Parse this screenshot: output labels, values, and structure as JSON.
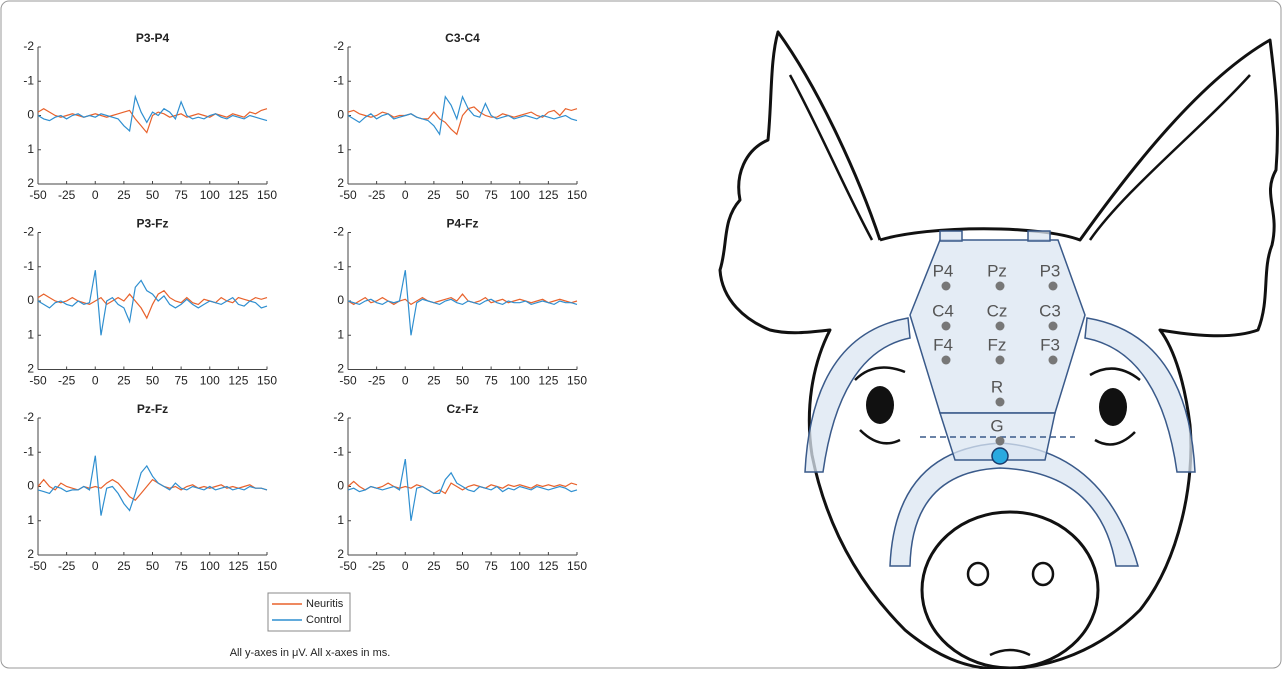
{
  "chart_data": [
    {
      "type": "line",
      "title": "P3-P4",
      "x": [
        -50,
        -45,
        -40,
        -35,
        -30,
        -25,
        -20,
        -15,
        -10,
        -5,
        0,
        5,
        10,
        15,
        20,
        25,
        30,
        35,
        40,
        45,
        50,
        55,
        60,
        65,
        70,
        75,
        80,
        85,
        90,
        95,
        100,
        105,
        110,
        115,
        120,
        125,
        130,
        135,
        140,
        145,
        150
      ],
      "series": [
        {
          "name": "Neuritis",
          "color": "#e8622c",
          "values": [
            -0.1,
            -0.2,
            -0.1,
            0,
            0.05,
            0,
            -0.05,
            0,
            0.05,
            0,
            -0.05,
            0,
            0.05,
            0,
            -0.05,
            -0.1,
            -0.15,
            0.1,
            0.3,
            0.5,
            0,
            -0.1,
            -0.05,
            0.05,
            0,
            -0.05,
            0.05,
            0,
            -0.05,
            0,
            0.05,
            -0.05,
            0,
            0.05,
            -0.05,
            0,
            0.05,
            -0.1,
            -0.05,
            -0.15,
            -0.2
          ]
        },
        {
          "name": "Control",
          "color": "#2f8fd0",
          "values": [
            0,
            0.1,
            0.15,
            0.05,
            0,
            0.1,
            0,
            -0.05,
            0.05,
            0,
            0.05,
            -0.05,
            0,
            0.05,
            0.1,
            0.3,
            0.45,
            -0.55,
            -0.1,
            0.2,
            -0.1,
            0,
            -0.2,
            -0.1,
            0.1,
            -0.4,
            0,
            0.1,
            0.05,
            0.1,
            0,
            -0.05,
            0.05,
            0.1,
            0,
            0.05,
            0.1,
            0,
            0.05,
            0.1,
            0.15
          ]
        }
      ],
      "xlim": [
        -50,
        150
      ],
      "ylim": [
        -2,
        2
      ],
      "y_inverted": true,
      "xticks": [
        -50,
        -25,
        0,
        25,
        50,
        75,
        100,
        125,
        150
      ],
      "yticks": [
        -2,
        -1,
        0,
        1,
        2
      ]
    },
    {
      "type": "line",
      "title": "C3-C4",
      "x": [
        -50,
        -45,
        -40,
        -35,
        -30,
        -25,
        -20,
        -15,
        -10,
        -5,
        0,
        5,
        10,
        15,
        20,
        25,
        30,
        35,
        40,
        45,
        50,
        55,
        60,
        65,
        70,
        75,
        80,
        85,
        90,
        95,
        100,
        105,
        110,
        115,
        120,
        125,
        130,
        135,
        140,
        145,
        150
      ],
      "series": [
        {
          "name": "Neuritis",
          "color": "#e8622c",
          "values": [
            -0.1,
            -0.15,
            -0.05,
            0,
            0.05,
            0,
            -0.1,
            -0.05,
            0.05,
            0,
            0,
            -0.05,
            0.05,
            0.1,
            0.1,
            -0.1,
            0.1,
            0.2,
            0.4,
            0.55,
            0,
            -0.2,
            -0.25,
            -0.1,
            0,
            0.05,
            0.05,
            -0.05,
            0,
            0.05,
            0,
            -0.05,
            -0.1,
            0,
            0.05,
            -0.1,
            -0.15,
            0,
            -0.2,
            -0.15,
            -0.2
          ]
        },
        {
          "name": "Control",
          "color": "#2f8fd0",
          "values": [
            0,
            0.1,
            0.2,
            0.05,
            -0.05,
            0.1,
            0,
            -0.05,
            0.1,
            0.05,
            0,
            -0.05,
            0.05,
            0.1,
            0.15,
            0.3,
            0.55,
            -0.55,
            -0.3,
            0.1,
            -0.55,
            -0.2,
            0,
            0.05,
            -0.35,
            0,
            0.1,
            0.05,
            0,
            0.1,
            0.05,
            0,
            0.05,
            0.1,
            0,
            0.05,
            0.1,
            0.05,
            0,
            0.1,
            0.15
          ]
        }
      ],
      "xlim": [
        -50,
        150
      ],
      "ylim": [
        -2,
        2
      ],
      "y_inverted": true,
      "xticks": [
        -50,
        -25,
        0,
        25,
        50,
        75,
        100,
        125,
        150
      ],
      "yticks": [
        -2,
        -1,
        0,
        1,
        2
      ]
    },
    {
      "type": "line",
      "title": "P3-Fz",
      "x": [
        -50,
        -45,
        -40,
        -35,
        -30,
        -25,
        -20,
        -15,
        -10,
        -5,
        0,
        5,
        10,
        15,
        20,
        25,
        30,
        35,
        40,
        45,
        50,
        55,
        60,
        65,
        70,
        75,
        80,
        85,
        90,
        95,
        100,
        105,
        110,
        115,
        120,
        125,
        130,
        135,
        140,
        145,
        150
      ],
      "series": [
        {
          "name": "Neuritis",
          "color": "#e8622c",
          "values": [
            -0.1,
            -0.2,
            -0.1,
            0,
            0.05,
            0,
            -0.1,
            0,
            0.05,
            0.1,
            0,
            -0.1,
            0.1,
            0,
            -0.1,
            0,
            -0.2,
            0,
            0.2,
            0.5,
            0.1,
            -0.2,
            -0.3,
            -0.1,
            0,
            0.05,
            -0.1,
            0.05,
            0.1,
            -0.05,
            0,
            0.05,
            -0.1,
            0,
            0.05,
            -0.1,
            -0.05,
            0,
            -0.1,
            -0.05,
            -0.1
          ]
        },
        {
          "name": "Control",
          "color": "#2f8fd0",
          "values": [
            0,
            0.1,
            0.2,
            0.05,
            0,
            0.1,
            0.15,
            0,
            0.1,
            0.05,
            -0.9,
            1.0,
            0,
            -0.1,
            0.1,
            0.2,
            0.6,
            -0.4,
            -0.6,
            -0.3,
            -0.2,
            0,
            -0.15,
            0.1,
            0.2,
            0.1,
            -0.05,
            0.1,
            0.2,
            0.1,
            0,
            0.05,
            0.1,
            0,
            -0.1,
            0.1,
            0.15,
            0,
            0.05,
            0.2,
            0.15
          ]
        }
      ],
      "xlim": [
        -50,
        150
      ],
      "ylim": [
        -2,
        2
      ],
      "y_inverted": true,
      "xticks": [
        -50,
        -25,
        0,
        25,
        50,
        75,
        100,
        125,
        150
      ],
      "yticks": [
        -2,
        -1,
        0,
        1,
        2
      ]
    },
    {
      "type": "line",
      "title": "P4-Fz",
      "x": [
        -50,
        -45,
        -40,
        -35,
        -30,
        -25,
        -20,
        -15,
        -10,
        -5,
        0,
        5,
        10,
        15,
        20,
        25,
        30,
        35,
        40,
        45,
        50,
        55,
        60,
        65,
        70,
        75,
        80,
        85,
        90,
        95,
        100,
        105,
        110,
        115,
        120,
        125,
        130,
        135,
        140,
        145,
        150
      ],
      "series": [
        {
          "name": "Neuritis",
          "color": "#e8622c",
          "values": [
            0,
            0.1,
            0,
            -0.1,
            0.05,
            0,
            -0.1,
            0,
            0.1,
            0,
            -0.05,
            0.1,
            0,
            -0.1,
            0,
            0.05,
            0,
            -0.05,
            -0.1,
            0,
            -0.2,
            0,
            0.05,
            0,
            -0.1,
            0.05,
            0,
            -0.05,
            0.05,
            0,
            -0.05,
            0,
            0.05,
            0,
            -0.05,
            0.05,
            0,
            -0.05,
            0,
            0.05,
            0
          ]
        },
        {
          "name": "Control",
          "color": "#2f8fd0",
          "values": [
            0,
            0.05,
            0.1,
            0,
            -0.05,
            0.05,
            0.1,
            0,
            0.05,
            0,
            -0.9,
            1.0,
            0.05,
            -0.05,
            0,
            0.05,
            0.1,
            0,
            -0.05,
            0.05,
            0.1,
            0,
            0.05,
            0.1,
            0,
            -0.05,
            0.05,
            0.1,
            0,
            0.05,
            0.05,
            0,
            0.1,
            0.05,
            0,
            0.05,
            0.1,
            0,
            0.05,
            0.05,
            0.1
          ]
        }
      ],
      "xlim": [
        -50,
        150
      ],
      "ylim": [
        -2,
        2
      ],
      "y_inverted": true,
      "xticks": [
        -50,
        -25,
        0,
        25,
        50,
        75,
        100,
        125,
        150
      ],
      "yticks": [
        -2,
        -1,
        0,
        1,
        2
      ]
    },
    {
      "type": "line",
      "title": "Pz-Fz",
      "x": [
        -50,
        -45,
        -40,
        -35,
        -30,
        -25,
        -20,
        -15,
        -10,
        -5,
        0,
        5,
        10,
        15,
        20,
        25,
        30,
        35,
        40,
        45,
        50,
        55,
        60,
        65,
        70,
        75,
        80,
        85,
        90,
        95,
        100,
        105,
        110,
        115,
        120,
        125,
        130,
        135,
        140,
        145,
        150
      ],
      "series": [
        {
          "name": "Neuritis",
          "color": "#e8622c",
          "values": [
            0,
            -0.2,
            0,
            0.1,
            -0.1,
            0,
            0.05,
            0.1,
            0,
            0.05,
            0,
            0.05,
            -0.1,
            -0.2,
            -0.1,
            0.1,
            0.3,
            0.4,
            0.2,
            0,
            -0.2,
            -0.1,
            0,
            0.05,
            0,
            0.1,
            0,
            -0.05,
            0.05,
            0,
            0.05,
            0,
            -0.05,
            0.05,
            0,
            0.05,
            0,
            -0.05,
            0.05,
            0.05,
            0.1
          ]
        },
        {
          "name": "Control",
          "color": "#2f8fd0",
          "values": [
            0.1,
            0.15,
            0.2,
            0,
            0.05,
            0.15,
            0.1,
            0.1,
            0,
            0.1,
            -0.9,
            0.85,
            0.05,
            0,
            0.2,
            0.5,
            0.7,
            0.2,
            -0.4,
            -0.6,
            -0.3,
            -0.1,
            0,
            0.1,
            -0.1,
            0.05,
            0.1,
            0,
            0.05,
            0.1,
            0,
            0.1,
            0.05,
            0,
            0.1,
            0.05,
            0.1,
            0,
            0.05,
            0.05,
            0.1
          ]
        }
      ],
      "xlim": [
        -50,
        150
      ],
      "ylim": [
        -2,
        2
      ],
      "y_inverted": true,
      "xticks": [
        -50,
        -25,
        0,
        25,
        50,
        75,
        100,
        125,
        150
      ],
      "yticks": [
        -2,
        -1,
        0,
        1,
        2
      ]
    },
    {
      "type": "line",
      "title": "Cz-Fz",
      "x": [
        -50,
        -45,
        -40,
        -35,
        -30,
        -25,
        -20,
        -15,
        -10,
        -5,
        0,
        5,
        10,
        15,
        20,
        25,
        30,
        35,
        40,
        45,
        50,
        55,
        60,
        65,
        70,
        75,
        80,
        85,
        90,
        95,
        100,
        105,
        110,
        115,
        120,
        125,
        130,
        135,
        140,
        145,
        150
      ],
      "series": [
        {
          "name": "Neuritis",
          "color": "#e8622c",
          "values": [
            0,
            -0.15,
            0,
            0.1,
            0,
            0.05,
            0,
            -0.1,
            0,
            0.05,
            0,
            0.05,
            -0.05,
            0,
            0.1,
            0.2,
            0.1,
            0.2,
            -0.1,
            0,
            0.1,
            0,
            -0.05,
            0,
            0.05,
            -0.05,
            0,
            0.05,
            -0.05,
            0,
            -0.05,
            0,
            0.05,
            -0.05,
            0,
            -0.05,
            0,
            -0.05,
            0,
            -0.1,
            -0.05
          ]
        },
        {
          "name": "Control",
          "color": "#2f8fd0",
          "values": [
            0.1,
            0.05,
            0.15,
            0.1,
            0,
            0.05,
            0.1,
            0.05,
            0,
            0.1,
            -0.8,
            1.0,
            0.05,
            0,
            0.1,
            0.2,
            0.2,
            -0.2,
            -0.4,
            -0.1,
            0,
            0.1,
            0.15,
            0,
            0.05,
            0.1,
            0,
            0.15,
            0.05,
            0.1,
            0,
            0.05,
            0.1,
            0,
            0.05,
            0.1,
            0.05,
            0,
            0.05,
            0.15,
            0.1
          ]
        }
      ],
      "xlim": [
        -50,
        150
      ],
      "ylim": [
        -2,
        2
      ],
      "y_inverted": true,
      "xticks": [
        -50,
        -25,
        0,
        25,
        50,
        75,
        100,
        125,
        150
      ],
      "yticks": [
        -2,
        -1,
        0,
        1,
        2
      ]
    }
  ],
  "caption": "All y-axes in μV. All x-axes in ms.",
  "diagram": {
    "electrodes": [
      "P4",
      "Pz",
      "P3",
      "C4",
      "Cz",
      "C3",
      "F4",
      "Fz",
      "F3",
      "R",
      "G"
    ]
  }
}
